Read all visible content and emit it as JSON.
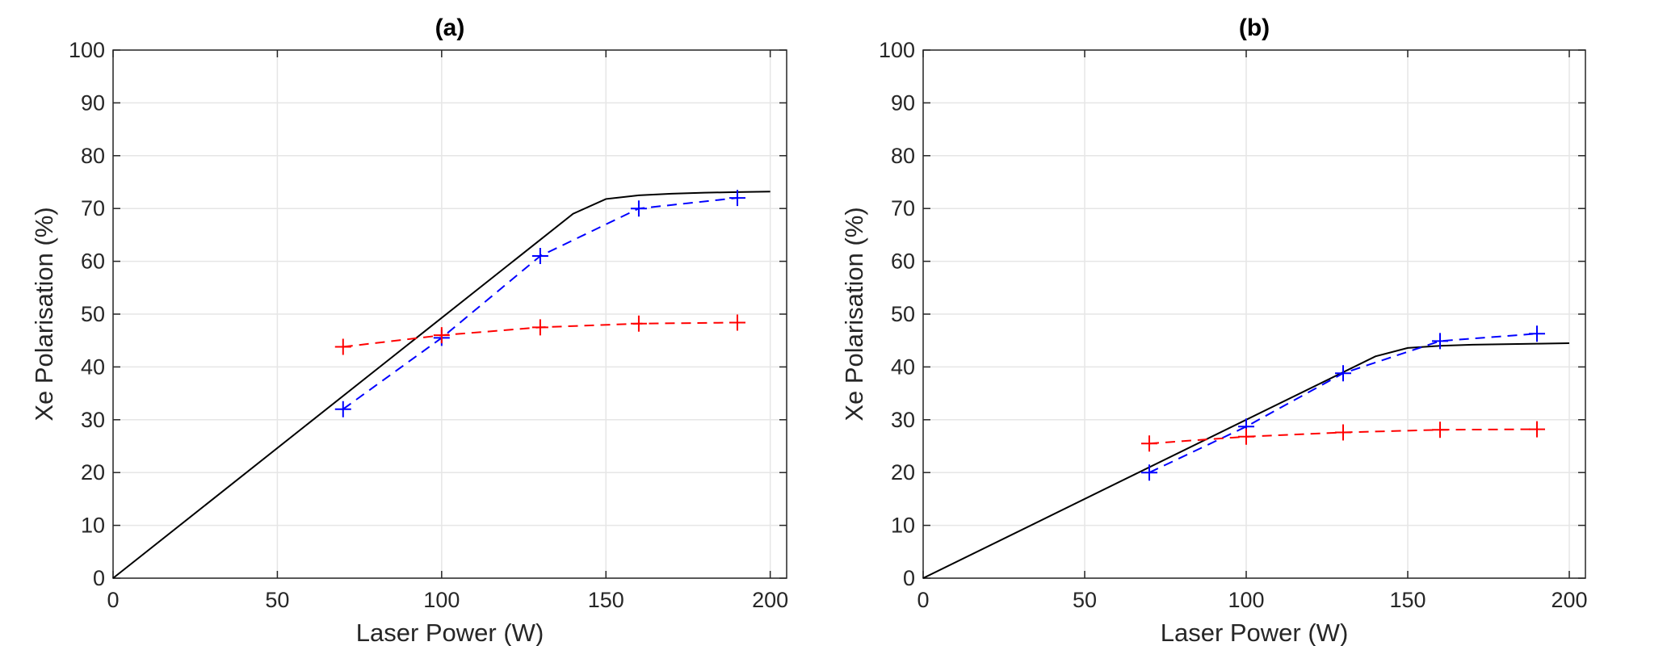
{
  "chart_data": [
    {
      "type": "line",
      "title": "(a)",
      "xlabel": "Laser Power (W)",
      "ylabel": "Xe Polarisation (%)",
      "xlim": [
        0,
        205
      ],
      "ylim": [
        0,
        100
      ],
      "xticks": [
        0,
        50,
        100,
        150,
        200
      ],
      "yticks": [
        0,
        10,
        20,
        30,
        40,
        50,
        60,
        70,
        80,
        90,
        100
      ],
      "grid": true,
      "series": [
        {
          "color": "#000000",
          "style": "solid",
          "marker": "none",
          "x": [
            0,
            140,
            150,
            160,
            170,
            180,
            190,
            200
          ],
          "y": [
            0,
            69,
            71.8,
            72.5,
            72.8,
            73,
            73.1,
            73.2
          ]
        },
        {
          "color": "#0000ff",
          "style": "dashed",
          "marker": "plus",
          "x": [
            70,
            100,
            130,
            160,
            190
          ],
          "y": [
            32,
            45.5,
            61,
            70,
            72
          ]
        },
        {
          "color": "#ff0000",
          "style": "dashed",
          "marker": "plus",
          "x": [
            70,
            100,
            130,
            160,
            190
          ],
          "y": [
            43.8,
            46,
            47.5,
            48.2,
            48.4
          ]
        }
      ]
    },
    {
      "type": "line",
      "title": "(b)",
      "xlabel": "Laser Power (W)",
      "ylabel": "Xe Polarisation (%)",
      "xlim": [
        0,
        205
      ],
      "ylim": [
        0,
        100
      ],
      "xticks": [
        0,
        50,
        100,
        150,
        200
      ],
      "yticks": [
        0,
        10,
        20,
        30,
        40,
        50,
        60,
        70,
        80,
        90,
        100
      ],
      "grid": true,
      "series": [
        {
          "color": "#000000",
          "style": "solid",
          "marker": "none",
          "x": [
            0,
            140,
            150,
            160,
            170,
            180,
            190,
            200
          ],
          "y": [
            0,
            42,
            43.6,
            44,
            44.2,
            44.3,
            44.4,
            44.5
          ]
        },
        {
          "color": "#0000ff",
          "style": "dashed",
          "marker": "plus",
          "x": [
            70,
            100,
            130,
            160,
            190
          ],
          "y": [
            20,
            28.7,
            38.8,
            44.9,
            46.3
          ]
        },
        {
          "color": "#ff0000",
          "style": "dashed",
          "marker": "plus",
          "x": [
            70,
            100,
            130,
            160,
            190
          ],
          "y": [
            25.5,
            26.8,
            27.6,
            28.1,
            28.2
          ]
        }
      ]
    }
  ]
}
